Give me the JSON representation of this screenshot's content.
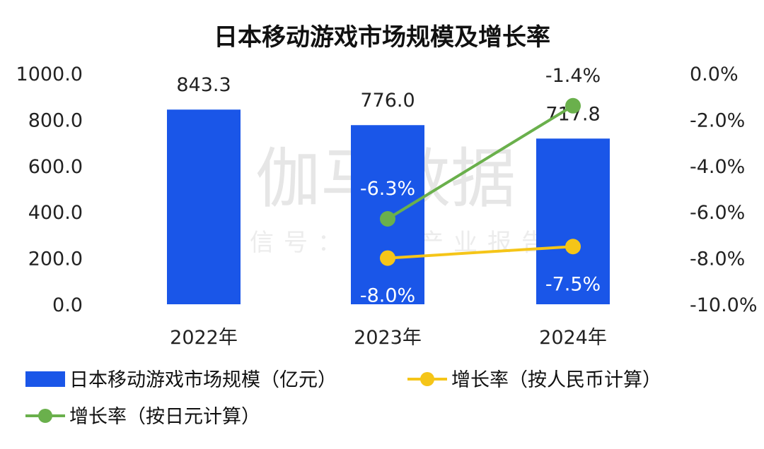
{
  "watermark": {
    "main": "伽马数据",
    "sub": "微信号：游戏产业报告"
  },
  "chart_data": {
    "type": "bar",
    "title": "日本移动游戏市场规模及增长率",
    "categories": [
      "2022年",
      "2023年",
      "2024年"
    ],
    "y_left": {
      "ylim": [
        0,
        1000
      ],
      "ticks": [
        "1000.0",
        "800.0",
        "600.0",
        "400.0",
        "200.0",
        "0.0"
      ]
    },
    "y_right": {
      "ylim": [
        -10,
        0
      ],
      "ticks": [
        "0.0%",
        "-2.0%",
        "-4.0%",
        "-6.0%",
        "-8.0%",
        "-10.0%"
      ]
    },
    "series": [
      {
        "name": "日本移动游戏市场规模（亿元）",
        "kind": "bar",
        "axis": "left",
        "color": "#1a56e8",
        "values": [
          843.3,
          776.0,
          717.8
        ],
        "labels": [
          "843.3",
          "776.0",
          "717.8"
        ]
      },
      {
        "name": "增长率（按人民币计算）",
        "kind": "line",
        "axis": "right",
        "color": "#f5c518",
        "values": [
          null,
          -8.0,
          -7.5
        ],
        "labels": [
          "",
          "-8.0%",
          "-7.5%"
        ]
      },
      {
        "name": "增长率（按日元计算）",
        "kind": "line",
        "axis": "right",
        "color": "#6ab04c",
        "values": [
          null,
          -6.3,
          -1.4
        ],
        "labels": [
          "",
          "-6.3%",
          "-1.4%"
        ]
      }
    ],
    "legend": "bottom",
    "grid": false
  }
}
